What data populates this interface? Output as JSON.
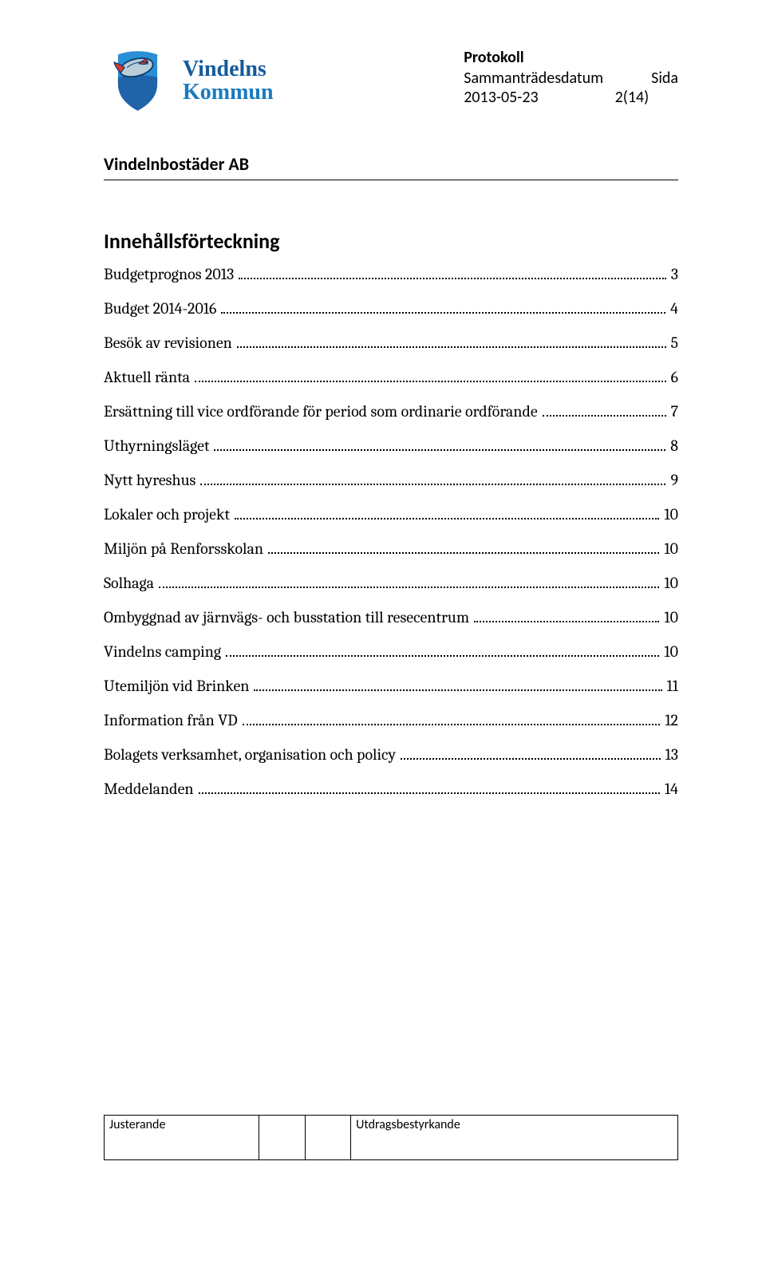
{
  "header": {
    "logo_line1": "Vindelns",
    "logo_line2": "Kommun",
    "logo_line1_color": "#155a9c",
    "logo_line2_color": "#1a7bbf",
    "meta_title": "Protokoll",
    "meta_label": "Sammanträdesdatum",
    "meta_side_label": "Sida",
    "meta_date": "2013-05-23",
    "meta_page": "2(14)"
  },
  "sub_org": "Vindelnbostäder AB",
  "toc_heading": "Innehållsförteckning",
  "toc": [
    {
      "label": "Budgetprognos 2013",
      "page": "3"
    },
    {
      "label": "Budget 2014-2016",
      "page": "4"
    },
    {
      "label": "Besök av revisionen",
      "page": "5"
    },
    {
      "label": "Aktuell ränta",
      "page": "6"
    },
    {
      "label": "Ersättning till vice ordförande för period som ordinarie ordförande",
      "page": "7"
    },
    {
      "label": "Uthyrningsläget",
      "page": "8"
    },
    {
      "label": "Nytt hyreshus",
      "page": "9"
    },
    {
      "label": "Lokaler och projekt",
      "page": "10"
    },
    {
      "label": "Miljön på Renforsskolan",
      "page": "10"
    },
    {
      "label": "Solhaga",
      "page": "10"
    },
    {
      "label": "Ombyggnad av järnvägs- och busstation till resecentrum",
      "page": "10"
    },
    {
      "label": "Vindelns camping",
      "page": "10"
    },
    {
      "label": "Utemiljön vid Brinken",
      "page": "11"
    },
    {
      "label": "Information från VD",
      "page": "12"
    },
    {
      "label": "Bolagets verksamhet, organisation och policy",
      "page": "13"
    },
    {
      "label": "Meddelanden",
      "page": "14"
    }
  ],
  "footer": {
    "col1": "Justerande",
    "col2": "",
    "col3": "",
    "col4": "Utdragsbestyrkande"
  },
  "styling": {
    "page_bg": "#ffffff",
    "text_color": "#000000",
    "heading_fontsize_pt": 19,
    "toc_fontsize_pt": 15,
    "body_font": "Calibri",
    "toc_font": "Cambria",
    "logo_colors": {
      "shield_upper": "#2a8fd4",
      "shield_lower": "#1f63a8",
      "fish_body": "#9db7c6",
      "fish_dark": "#0d3a6e",
      "fish_red": "#d33a2f"
    }
  }
}
